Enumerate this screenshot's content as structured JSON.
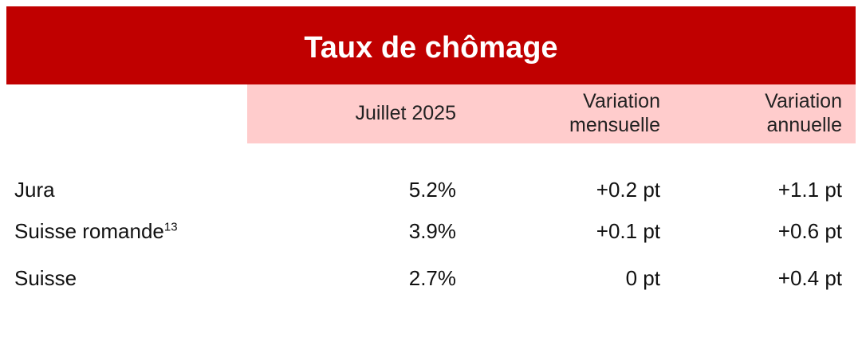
{
  "title": "Taux de chômage",
  "table": {
    "columns": [
      [
        "Juillet 2025"
      ],
      [
        "Variation",
        "mensuelle"
      ],
      [
        "Variation",
        "annuelle"
      ]
    ],
    "rows": [
      {
        "label": "Jura",
        "values": [
          "5.2%",
          "+0.2 pt",
          "+1.1 pt"
        ]
      },
      {
        "label": "Suisse romande",
        "note": "13",
        "values": [
          "3.9%",
          "+0.1 pt",
          "+0.6 pt"
        ]
      },
      {
        "label": "Suisse",
        "values": [
          "2.7%",
          "0 pt",
          "+0.4 pt"
        ]
      }
    ]
  }
}
